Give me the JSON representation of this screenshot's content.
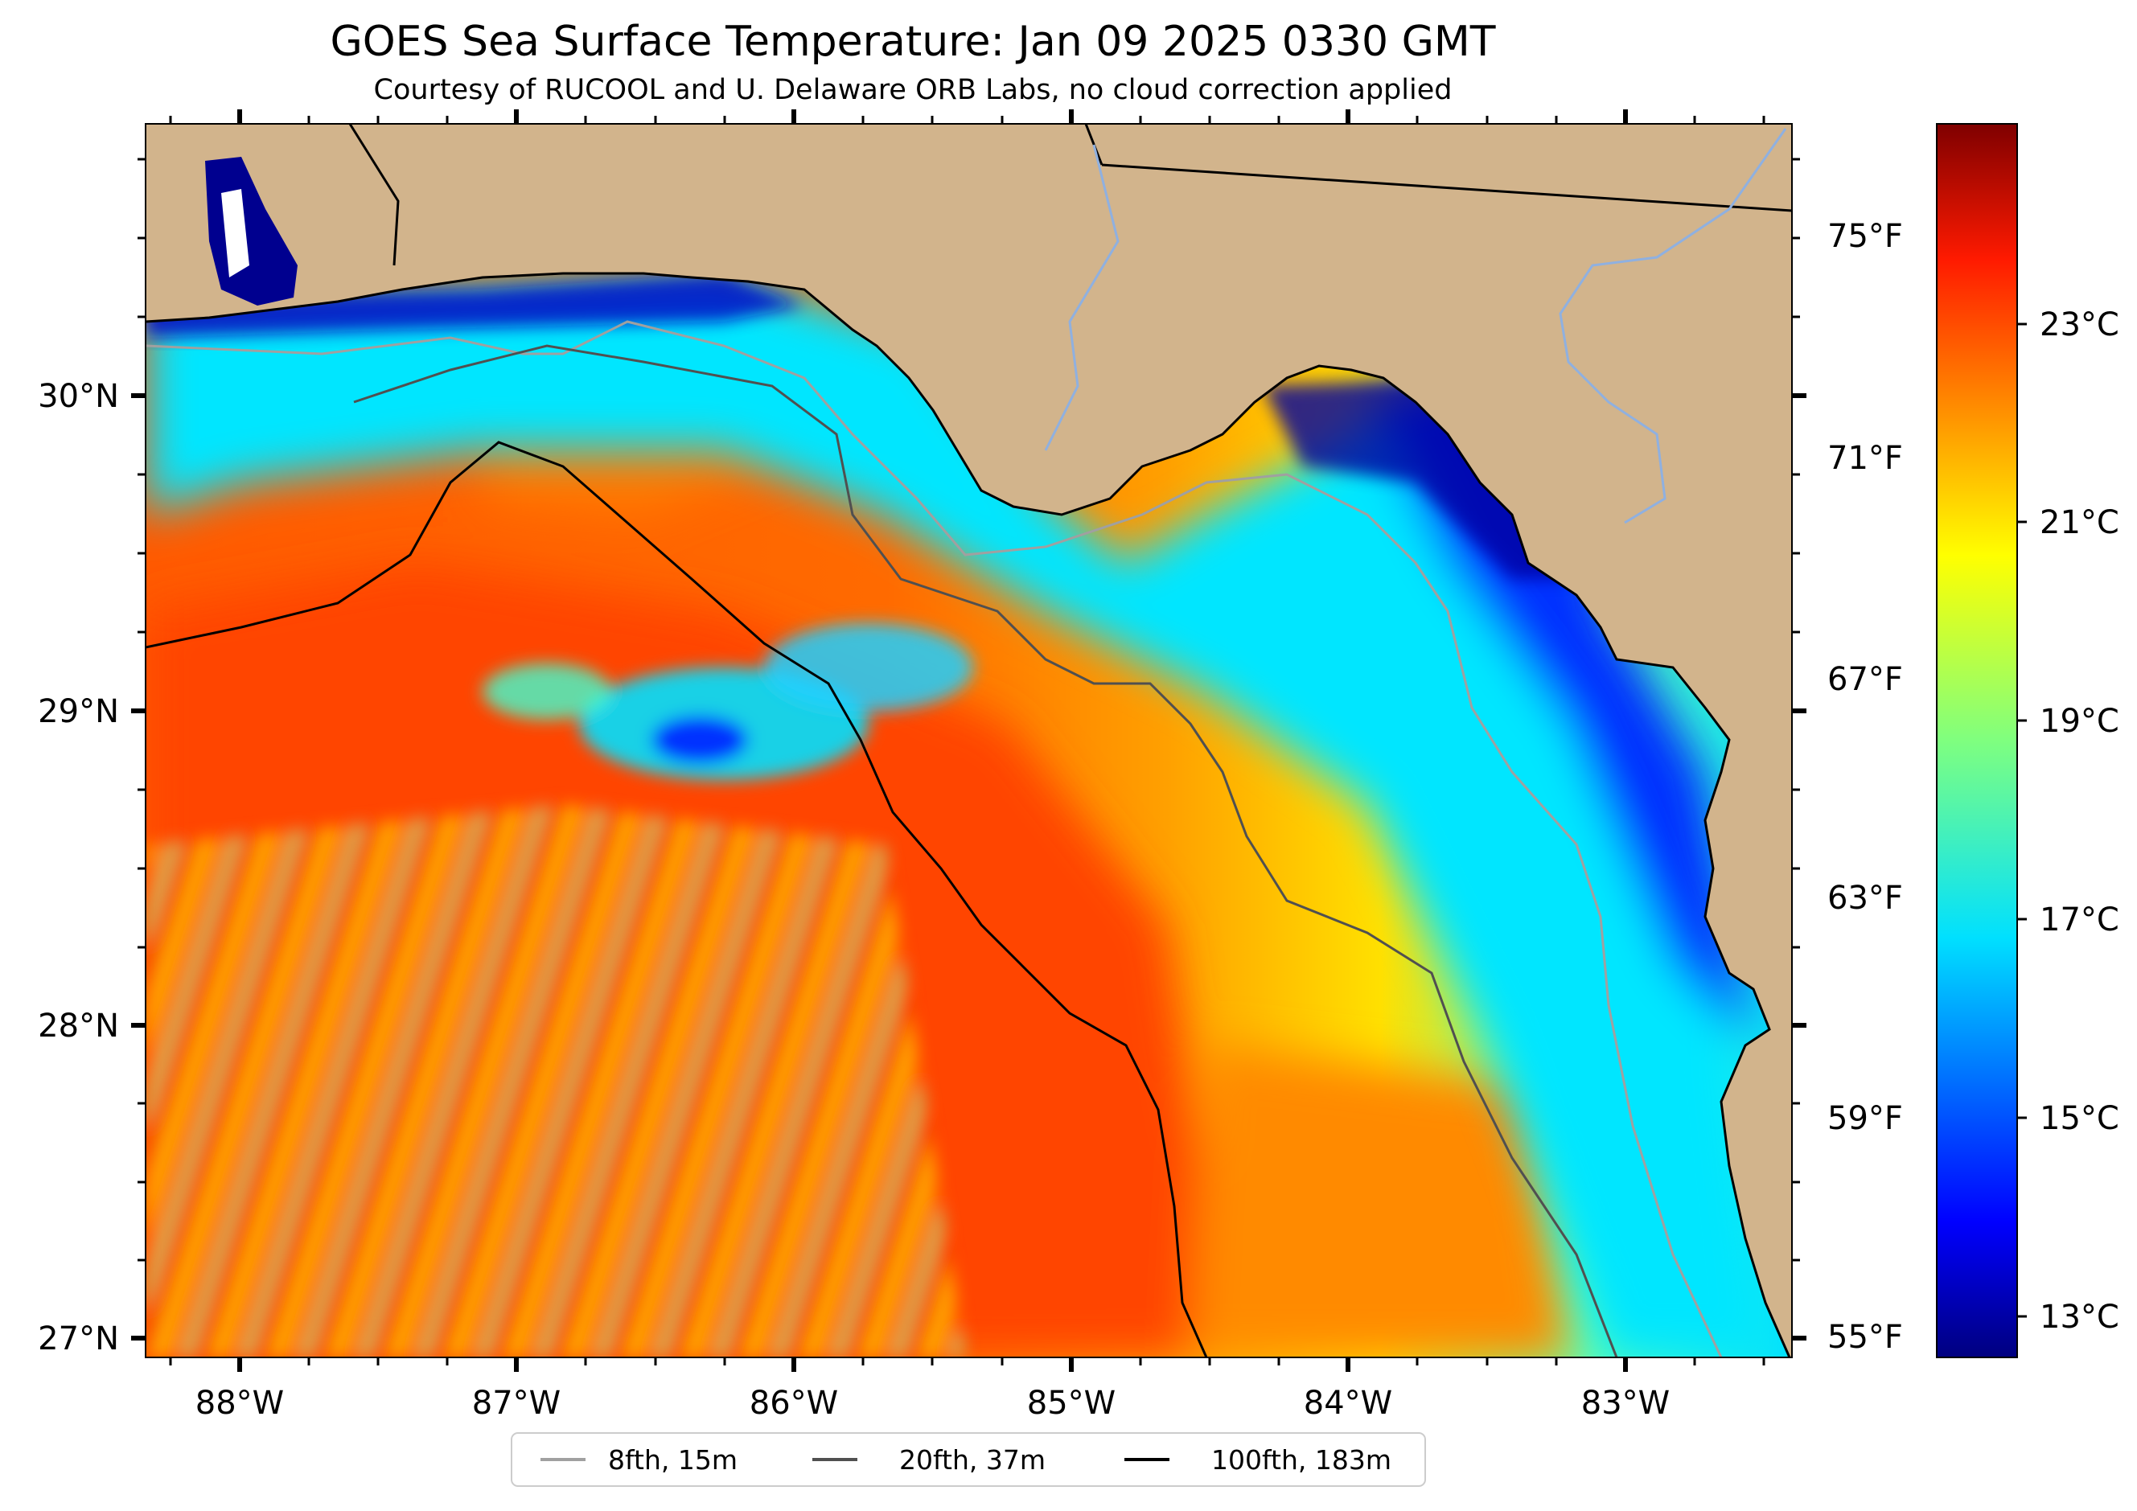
{
  "title": "GOES Sea Surface Temperature: Jan 09 2025 0330 GMT",
  "subtitle": "Courtesy of RUCOOL and U. Delaware ORB Labs, no cloud correction applied",
  "map": {
    "lon_labels": [
      "88°W",
      "87°W",
      "86°W",
      "85°W",
      "84°W",
      "83°W"
    ],
    "lat_labels": [
      "30°N",
      "29°N",
      "28°N",
      "27°N"
    ],
    "land_color": "#d2b48c",
    "ocean_warm_color": "#ff4a00",
    "ocean_cool_color": "#00e6ff"
  },
  "fahrenheit_axis": {
    "labels": [
      "75°F",
      "71°F",
      "67°F",
      "63°F",
      "59°F",
      "55°F"
    ]
  },
  "colorbar": {
    "labels": [
      "23°C",
      "21°C",
      "19°C",
      "17°C",
      "15°C",
      "13°C"
    ],
    "colormap": "jet"
  },
  "legend": {
    "items": [
      {
        "label": "8fth, 15m",
        "color": "#a0a0a0"
      },
      {
        "label": "20fth, 37m",
        "color": "#505050"
      },
      {
        "label": "100fth, 183m",
        "color": "#000000"
      }
    ]
  }
}
